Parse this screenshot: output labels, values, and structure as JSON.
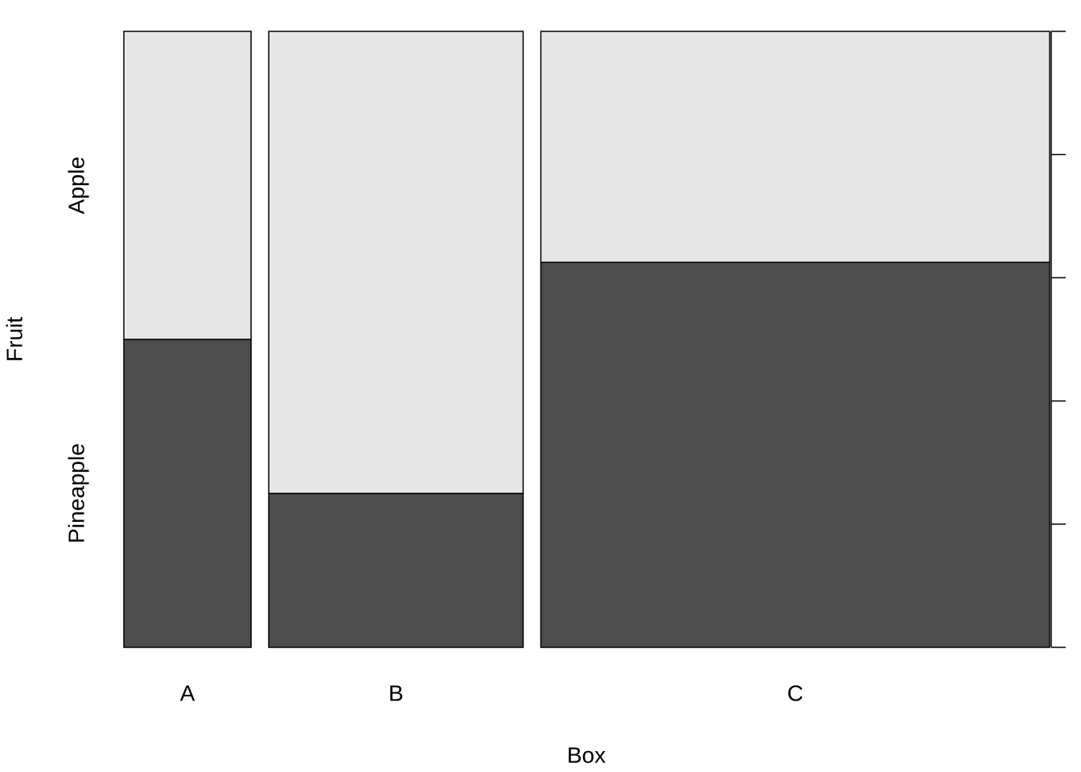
{
  "chart_data": {
    "type": "mosaic",
    "x_label": "Box",
    "y_label": "Fruit",
    "categories": [
      "A",
      "B",
      "C"
    ],
    "series": [
      {
        "name": "Pineapple",
        "color": "#4d4d4d",
        "values": [
          2,
          2,
          10
        ]
      },
      {
        "name": "Apple",
        "color": "#e6e6e6",
        "values": [
          2,
          6,
          6
        ]
      }
    ],
    "ylim": [
      0,
      1
    ],
    "yticks": [
      0,
      0.2,
      0.4,
      0.6,
      0.8,
      1
    ]
  }
}
